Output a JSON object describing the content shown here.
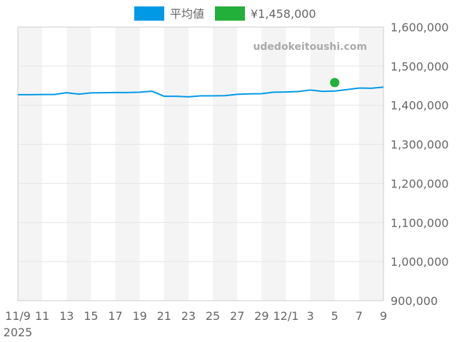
{
  "chart_data": {
    "type": "line",
    "legend": [
      {
        "label": "平均値",
        "color": "#0099e6"
      },
      {
        "label": "¥1,458,000",
        "color": "#22b03a"
      }
    ],
    "legend_placement": "top",
    "watermark": "udedokeitoushi.com",
    "x_start": "2025-11-09",
    "x_days": 30,
    "x_ticks": [
      {
        "day": 0,
        "label": "11/9"
      },
      {
        "day": 2,
        "label": "11"
      },
      {
        "day": 4,
        "label": "13"
      },
      {
        "day": 6,
        "label": "15"
      },
      {
        "day": 8,
        "label": "17"
      },
      {
        "day": 10,
        "label": "19"
      },
      {
        "day": 12,
        "label": "21"
      },
      {
        "day": 14,
        "label": "23"
      },
      {
        "day": 16,
        "label": "25"
      },
      {
        "day": 18,
        "label": "27"
      },
      {
        "day": 20,
        "label": "29"
      },
      {
        "day": 22,
        "label": "12/1"
      },
      {
        "day": 24,
        "label": "3"
      },
      {
        "day": 26,
        "label": "5"
      },
      {
        "day": 28,
        "label": "7"
      },
      {
        "day": 30,
        "label": "9"
      }
    ],
    "x_year_label": "2025",
    "ylim": [
      900000,
      1600000
    ],
    "y_ticks": [
      {
        "value": 900000,
        "label": "900,000"
      },
      {
        "value": 1000000,
        "label": "1,000,000"
      },
      {
        "value": 1100000,
        "label": "1,100,000"
      },
      {
        "value": 1200000,
        "label": "1,200,000"
      },
      {
        "value": 1300000,
        "label": "1,300,000"
      },
      {
        "value": 1400000,
        "label": "1,400,000"
      },
      {
        "value": 1500000,
        "label": "1,500,000"
      },
      {
        "value": 1600000,
        "label": "1,600,000"
      }
    ],
    "series": [
      {
        "name": "平均値",
        "color": "#0099e6",
        "values": [
          1427000,
          1427000,
          1427500,
          1427500,
          1432000,
          1428500,
          1431500,
          1432000,
          1432500,
          1432500,
          1433500,
          1436000,
          1423000,
          1423000,
          1421500,
          1424000,
          1424000,
          1424500,
          1428000,
          1429000,
          1429500,
          1433500,
          1434000,
          1435000,
          1439000,
          1435500,
          1436500,
          1440000,
          1444000,
          1443500,
          1446500
        ]
      },
      {
        "name": "¥1,458,000",
        "color": "#22b03a",
        "type": "scatter",
        "points": [
          {
            "day": 26,
            "value": 1458000
          }
        ]
      }
    ]
  }
}
